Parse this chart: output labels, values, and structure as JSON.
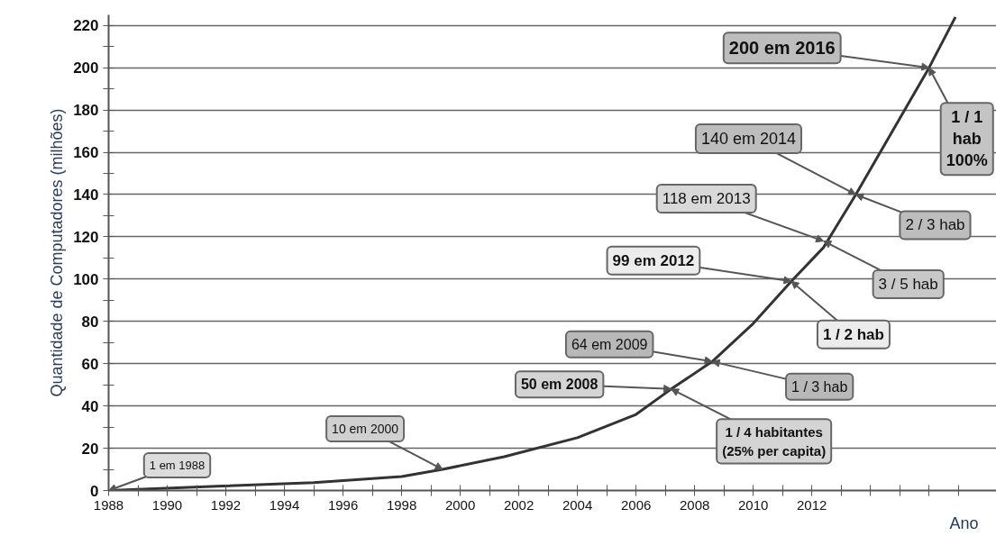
{
  "chart_data": {
    "type": "line",
    "ylabel": "Quantidade de Computadores (milhões)",
    "xlabel": "Ano",
    "x": [
      1988,
      1991.7,
      1995,
      1998,
      1999.4,
      2001.5,
      2004,
      2006,
      2007.2,
      2008.6,
      2010,
      2011.3,
      2012.4,
      2013.5,
      2016,
      2016.9
    ],
    "series": [
      {
        "color": "#333333",
        "values": [
          0,
          2,
          3.7,
          6.6,
          10,
          16,
          25,
          36,
          48,
          61,
          79,
          99,
          115,
          140,
          200,
          224
        ]
      }
    ],
    "xlim": [
      1988,
      2018.3
    ],
    "ylim": [
      0,
      225
    ],
    "xticks": [
      1988,
      {
        "value": 1989,
        "label": null
      },
      1990,
      {
        "value": 1991,
        "label": null
      },
      1992,
      {
        "value": 1993,
        "label": null
      },
      1994,
      {
        "value": 1995,
        "label": null
      },
      1996,
      {
        "value": 1997,
        "label": null
      },
      1998,
      {
        "value": 1999,
        "label": null
      },
      2000,
      {
        "value": 2001,
        "label": null
      },
      2002,
      {
        "value": 2003,
        "label": null
      },
      2004,
      {
        "value": 2005,
        "label": null
      },
      2006,
      {
        "value": 2007,
        "label": null
      },
      2008,
      {
        "value": 2009,
        "label": null
      },
      2010,
      {
        "value": 2011,
        "label": null
      },
      2012,
      {
        "value": 2013,
        "label": null
      },
      {
        "value": 2014,
        "label": null
      },
      {
        "value": 2015,
        "label": null
      },
      {
        "value": 2016,
        "label": null
      },
      {
        "value": 2017,
        "label": null
      }
    ],
    "yticks": [
      0,
      {
        "value": 10,
        "label": null
      },
      20,
      {
        "value": 30,
        "label": null
      },
      40,
      {
        "value": 50,
        "label": null
      },
      60,
      {
        "value": 70,
        "label": null
      },
      80,
      {
        "value": 90,
        "label": null
      },
      100,
      {
        "value": 110,
        "label": null
      },
      120,
      {
        "value": 130,
        "label": null
      },
      140,
      {
        "value": 150,
        "label": null
      },
      160,
      {
        "value": 170,
        "label": null
      },
      180,
      {
        "value": 190,
        "label": null
      },
      200,
      {
        "value": 210,
        "label": null
      },
      220
    ],
    "grid": "y",
    "annotations": [
      {
        "text": "1 em 1988",
        "x": 1988,
        "y": 0
      },
      {
        "text": "10 em 2000",
        "x": 1999.4,
        "y": 10
      },
      {
        "text": "50 em 2008",
        "x": 2007.2,
        "y": 48
      },
      {
        "text": "1 / 4 habitantes\n(25% per capita)",
        "x": 2007.2,
        "y": 48
      },
      {
        "text": "64 em 2009",
        "x": 2008.6,
        "y": 61
      },
      {
        "text": "1 / 3 hab",
        "x": 2008.6,
        "y": 61
      },
      {
        "text": "99 em 2012",
        "x": 2011.3,
        "y": 99
      },
      {
        "text": "1 / 2 hab",
        "x": 2011.3,
        "y": 99
      },
      {
        "text": "118 em 2013",
        "x": 2012.4,
        "y": 118
      },
      {
        "text": "3 / 5 hab",
        "x": 2012.4,
        "y": 118
      },
      {
        "text": "140 em 2014",
        "x": 2013.5,
        "y": 140
      },
      {
        "text": "2 / 3 hab",
        "x": 2013.5,
        "y": 140
      },
      {
        "text": "200 em 2016",
        "x": 2016,
        "y": 200
      },
      {
        "text": "1 / 1\nhab\n100%",
        "x": 2016,
        "y": 200
      }
    ]
  }
}
